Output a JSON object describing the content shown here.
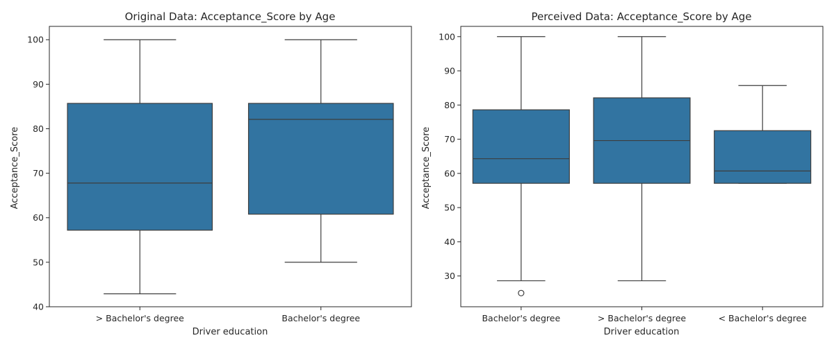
{
  "chart_data": [
    {
      "type": "box",
      "title": "Original Data: Acceptance_Score by Age",
      "xlabel": "Driver education",
      "ylabel": "Acceptance_Score",
      "ylim": [
        40,
        103
      ],
      "yticks": [
        40,
        50,
        60,
        70,
        80,
        90,
        100
      ],
      "color": "#3274a1",
      "categories": [
        "> Bachelor's degree",
        "Bachelor's degree"
      ],
      "boxes": [
        {
          "whisker_low": 42.9,
          "q1": 57.2,
          "median": 67.8,
          "q3": 85.7,
          "whisker_high": 100,
          "outliers": []
        },
        {
          "whisker_low": 50.0,
          "q1": 60.8,
          "median": 82.1,
          "q3": 85.7,
          "whisker_high": 100,
          "outliers": []
        }
      ]
    },
    {
      "type": "box",
      "title": "Perceived Data: Acceptance_Score by Age",
      "xlabel": "Driver education",
      "ylabel": "Acceptance_Score",
      "ylim": [
        21,
        103
      ],
      "yticks": [
        30,
        40,
        50,
        60,
        70,
        80,
        90,
        100
      ],
      "color": "#3274a1",
      "categories": [
        "Bachelor's degree",
        "> Bachelor's degree",
        "< Bachelor's degree"
      ],
      "boxes": [
        {
          "whisker_low": 28.6,
          "q1": 57.1,
          "median": 64.3,
          "q3": 78.6,
          "whisker_high": 100,
          "outliers": [
            25.0
          ]
        },
        {
          "whisker_low": 28.6,
          "q1": 57.1,
          "median": 69.6,
          "q3": 82.1,
          "whisker_high": 100,
          "outliers": []
        },
        {
          "whisker_low": 57.1,
          "q1": 57.1,
          "median": 60.7,
          "q3": 72.5,
          "whisker_high": 85.7,
          "outliers": []
        }
      ]
    }
  ]
}
